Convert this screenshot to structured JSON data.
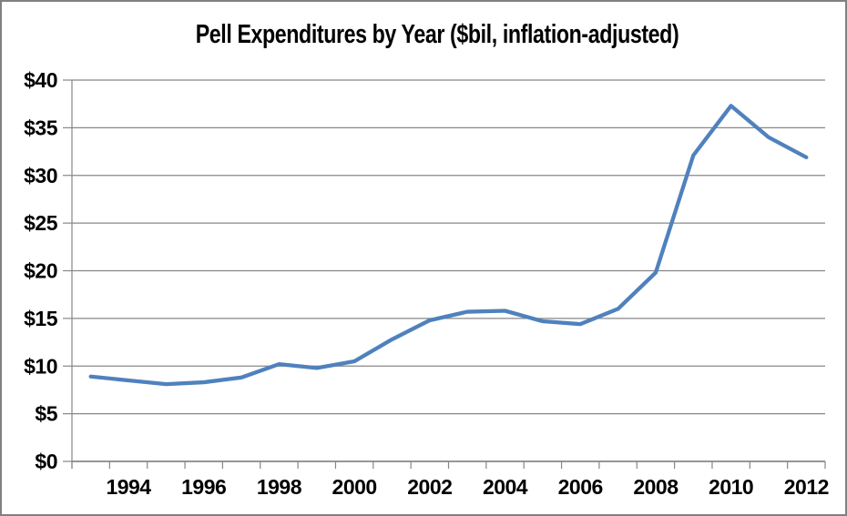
{
  "chart_data": {
    "type": "line",
    "title": "Pell Expenditures by Year ($bil, inflation-adjusted)",
    "xlabel": "",
    "ylabel": "",
    "x": [
      1993,
      1994,
      1995,
      1996,
      1997,
      1998,
      1999,
      2000,
      2001,
      2002,
      2003,
      2004,
      2005,
      2006,
      2007,
      2008,
      2009,
      2010,
      2011,
      2012
    ],
    "series": [
      {
        "name": "Pell Expenditures ($bil, inflation-adjusted)",
        "values": [
          8.9,
          8.5,
          8.1,
          8.3,
          8.8,
          10.2,
          9.8,
          10.5,
          12.8,
          14.8,
          15.7,
          15.8,
          14.7,
          14.4,
          16.0,
          19.8,
          32.1,
          37.3,
          34.0,
          31.9
        ]
      }
    ],
    "ylim": [
      0,
      40
    ],
    "y_tick_values": [
      0,
      5,
      10,
      15,
      20,
      25,
      30,
      35,
      40
    ],
    "y_tick_labels": [
      "$0",
      "$5",
      "$10",
      "$15",
      "$20",
      "$25",
      "$30",
      "$35",
      "$40"
    ],
    "x_ticks": [
      {
        "index": 1,
        "label": "1994"
      },
      {
        "index": 3,
        "label": "1996"
      },
      {
        "index": 5,
        "label": "1998"
      },
      {
        "index": 7,
        "label": "2000"
      },
      {
        "index": 9,
        "label": "2002"
      },
      {
        "index": 11,
        "label": "2004"
      },
      {
        "index": 13,
        "label": "2006"
      },
      {
        "index": 15,
        "label": "2008"
      },
      {
        "index": 17,
        "label": "2010"
      },
      {
        "index": 19,
        "label": "2012"
      }
    ],
    "grid": "horizontal",
    "legend": "none",
    "colors": {
      "line": "#4F81BD",
      "gridline": "#878787",
      "axis": "#878787",
      "frame_border": "#808080",
      "text": "#000000",
      "background": "#ffffff"
    }
  }
}
